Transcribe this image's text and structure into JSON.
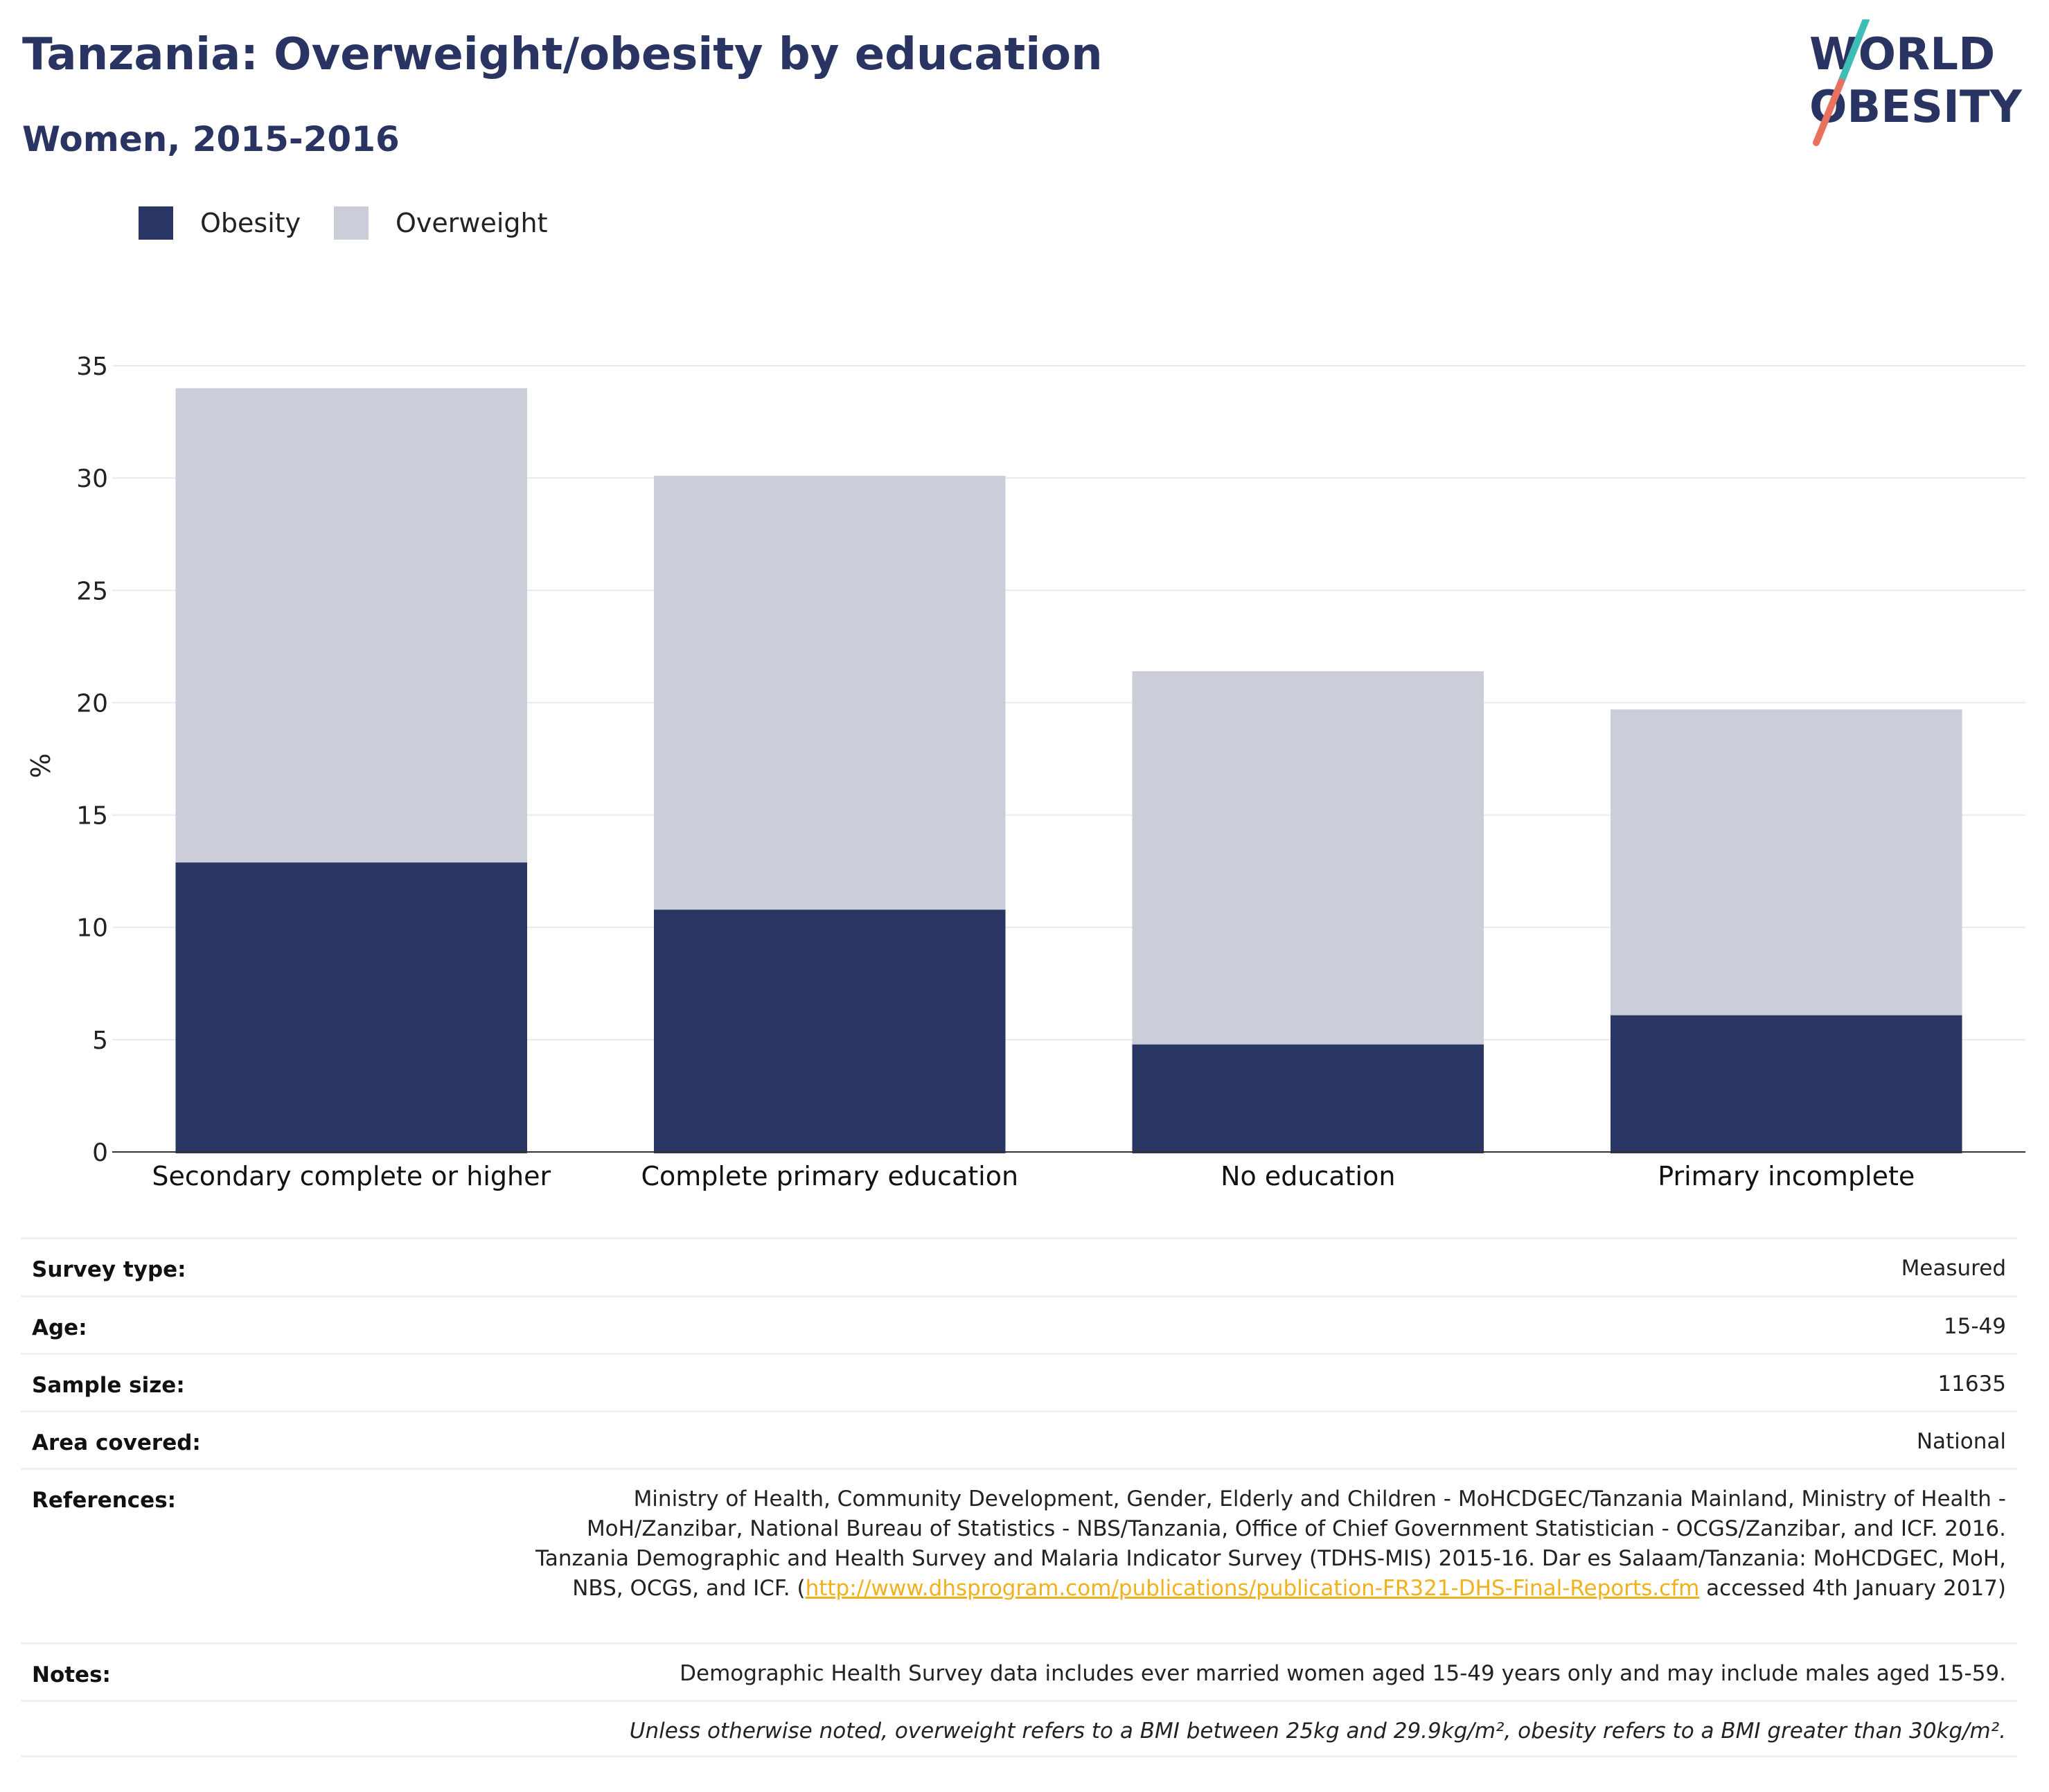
{
  "header": {
    "title": "Tanzania: Overweight/obesity by education",
    "subtitle": "Women, 2015-2016"
  },
  "logo": {
    "line1": "WORLD",
    "line2": "OBESITY",
    "colors": {
      "text": "#2a3462",
      "slash_teal": "#3dbcb8",
      "slash_coral": "#e8725f"
    }
  },
  "legend": [
    {
      "label": "Obesity",
      "color": "#2a3663"
    },
    {
      "label": "Overweight",
      "color": "#cbcdd8"
    }
  ],
  "chart_data": {
    "type": "bar",
    "stacked": true,
    "categories": [
      "Secondary complete or higher",
      "Complete primary education",
      "No education",
      "Primary incomplete"
    ],
    "series": [
      {
        "name": "Obesity",
        "color": "#2a3663",
        "values": [
          12.9,
          10.8,
          4.8,
          6.1
        ]
      },
      {
        "name": "Overweight",
        "color": "#cbcdd8",
        "values": [
          21.1,
          19.3,
          16.6,
          13.6
        ]
      }
    ],
    "totals": [
      34.0,
      30.1,
      21.4,
      19.7
    ],
    "ylabel": "%",
    "ylim": [
      0,
      35
    ],
    "yticks": [
      0,
      5,
      10,
      15,
      20,
      25,
      30,
      35
    ],
    "grid": true,
    "legend_position": "top-left"
  },
  "info": {
    "survey_type": {
      "label": "Survey type:",
      "value": "Measured"
    },
    "age": {
      "label": "Age:",
      "value": "15-49"
    },
    "sample_size": {
      "label": "Sample size:",
      "value": "11635"
    },
    "area_covered": {
      "label": "Area covered:",
      "value": "National"
    },
    "references": {
      "label": "References:",
      "text_before": "Ministry of Health, Community Development, Gender, Elderly and Children - MoHCDGEC/Tanzania Mainland, Ministry of Health - MoH/Zanzibar, National Bureau of Statistics - NBS/Tanzania, Office of Chief Government Statistician - OCGS/Zanzibar, and ICF. 2016. Tanzania Demographic and Health Survey and Malaria Indicator Survey (TDHS-MIS) 2015-16. Dar es Salaam/Tanzania: MoHCDGEC, MoH, NBS, OCGS, and ICF. (",
      "link": "http://www.dhsprogram.com/publications/publication-FR321-DHS-Final-Reports.cfm",
      "text_after": " accessed 4th January 2017)"
    },
    "notes": {
      "label": "Notes:",
      "value": "Demographic Health Survey data includes ever married women aged 15-49 years only and may include males aged 15-59."
    },
    "definition_note": "Unless otherwise noted, overweight refers to a BMI between 25kg and 29.9kg/m², obesity refers to a BMI greater than 30kg/m²."
  }
}
